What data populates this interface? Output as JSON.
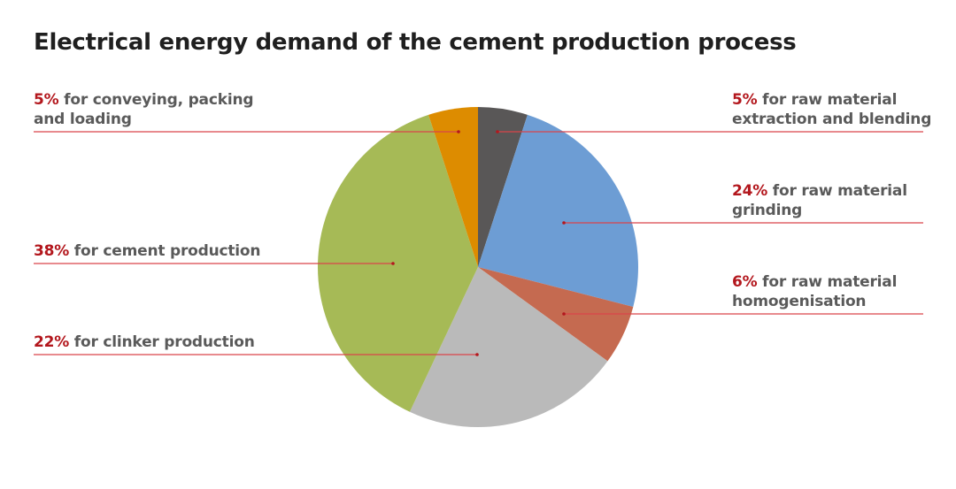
{
  "chart_data": {
    "type": "pie",
    "title": "Electrical energy demand of the cement production process",
    "categories": [
      "raw material extraction and blending",
      "raw material grinding",
      "raw material homogenisation",
      "clinker production",
      "cement production",
      "conveying, packing and loading"
    ],
    "values": [
      5,
      24,
      6,
      22,
      38,
      5
    ],
    "unit": "%",
    "colors": [
      "#595757",
      "#6d9dd4",
      "#c56a50",
      "#bababa",
      "#a6ba56",
      "#dd8c00"
    ],
    "start_angle": "12 o'clock",
    "direction": "clockwise",
    "legend": "none (callout labels with leader lines)"
  },
  "title": "Electrical energy demand of the cement production process",
  "labels": [
    {
      "pct": "5%",
      "line1": " for raw material",
      "line2": "extraction and blending"
    },
    {
      "pct": "24%",
      "line1": " for raw material",
      "line2": "grinding"
    },
    {
      "pct": "6%",
      "line1": " for raw material",
      "line2": "homogenisation"
    },
    {
      "pct": "22%",
      "line1": " for clinker production",
      "line2": ""
    },
    {
      "pct": "38%",
      "line1": " for cement production",
      "line2": ""
    },
    {
      "pct": "5%",
      "line1": " for conveying, packing",
      "line2": "and loading"
    }
  ],
  "accent_color": "#b3171d",
  "leader_color": "#d9444a"
}
